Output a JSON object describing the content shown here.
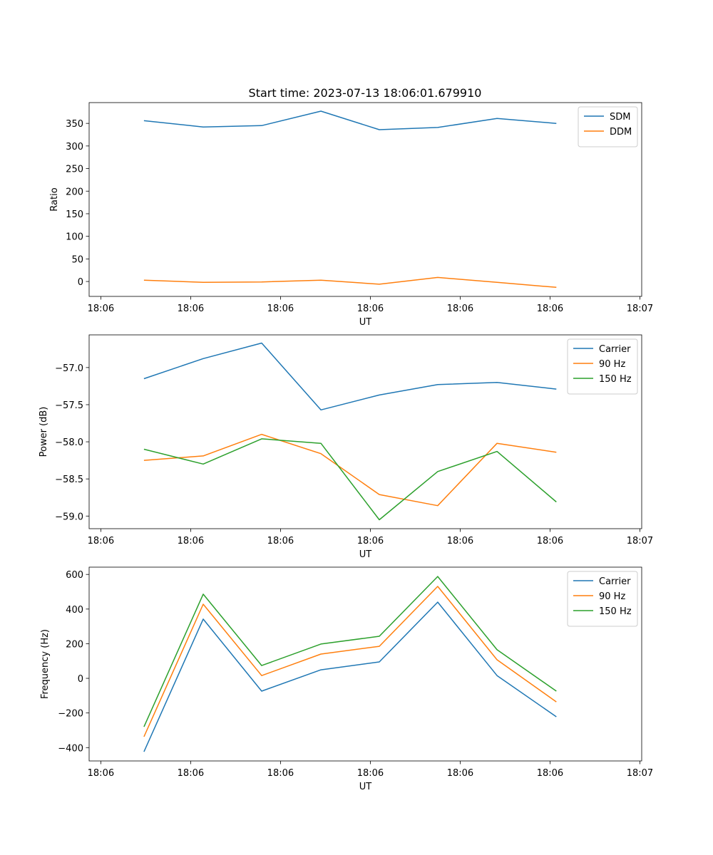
{
  "figure_title": "Start time: 2023-07-13 18:06:01.679910",
  "colors": {
    "blue": "#1f77b4",
    "orange": "#ff7f0e",
    "green": "#2ca02c"
  },
  "chart_data": [
    {
      "type": "line",
      "title": "Start time: 2023-07-13 18:06:01.679910",
      "xlabel": "UT",
      "ylabel": "Ratio",
      "x_seconds_after_18_06": [
        4.8,
        11.4,
        17.9,
        24.5,
        31.0,
        37.5,
        44.1,
        50.7
      ],
      "xlim": [
        -1.3,
        60.2
      ],
      "xticks": [
        0,
        10,
        20,
        30,
        40,
        50,
        60
      ],
      "xtick_labels": [
        "18:06",
        "18:06",
        "18:06",
        "18:06",
        "18:06",
        "18:06",
        "18:07"
      ],
      "ylim": [
        -33,
        396
      ],
      "yticks": [
        0,
        50,
        100,
        150,
        200,
        250,
        300,
        350
      ],
      "ytick_labels": [
        "0",
        "50",
        "100",
        "150",
        "200",
        "250",
        "300",
        "350"
      ],
      "legend": "top-right",
      "series": [
        {
          "name": "SDM",
          "color": "#1f77b4",
          "values": [
            356,
            342,
            345,
            377,
            336,
            341,
            361,
            350
          ]
        },
        {
          "name": "DDM",
          "color": "#ff7f0e",
          "values": [
            3,
            -2,
            -1,
            3,
            -6,
            9,
            -2,
            -13
          ]
        }
      ]
    },
    {
      "type": "line",
      "xlabel": "UT",
      "ylabel": "Power (dB)",
      "x_seconds_after_18_06": [
        4.8,
        11.4,
        17.9,
        24.5,
        31.0,
        37.5,
        44.1,
        50.7
      ],
      "xlim": [
        -1.3,
        60.2
      ],
      "xticks": [
        0,
        10,
        20,
        30,
        40,
        50,
        60
      ],
      "xtick_labels": [
        "18:06",
        "18:06",
        "18:06",
        "18:06",
        "18:06",
        "18:06",
        "18:07"
      ],
      "ylim": [
        -59.17,
        -56.56
      ],
      "yticks": [
        -59.0,
        -58.5,
        -58.0,
        -57.5,
        -57.0
      ],
      "ytick_labels": [
        "−59.0",
        "−58.5",
        "−58.0",
        "−57.5",
        "−57.0"
      ],
      "legend": "top-right",
      "series": [
        {
          "name": "Carrier",
          "color": "#1f77b4",
          "values": [
            -57.15,
            -56.88,
            -56.67,
            -57.57,
            -57.37,
            -57.23,
            -57.2,
            -57.29
          ]
        },
        {
          "name": "90 Hz",
          "color": "#ff7f0e",
          "values": [
            -58.25,
            -58.19,
            -57.9,
            -58.16,
            -58.71,
            -58.86,
            -58.02,
            -58.14
          ]
        },
        {
          "name": "150 Hz",
          "color": "#2ca02c",
          "values": [
            -58.1,
            -58.3,
            -57.96,
            -58.02,
            -59.05,
            -58.4,
            -58.13,
            -58.81
          ]
        }
      ]
    },
    {
      "type": "line",
      "xlabel": "UT",
      "ylabel": "Frequency (Hz)",
      "x_seconds_after_18_06": [
        4.8,
        11.4,
        17.9,
        24.5,
        31.0,
        37.5,
        44.1,
        50.7
      ],
      "xlim": [
        -1.3,
        60.2
      ],
      "xticks": [
        0,
        10,
        20,
        30,
        40,
        50,
        60
      ],
      "xtick_labels": [
        "18:06",
        "18:06",
        "18:06",
        "18:06",
        "18:06",
        "18:06",
        "18:07"
      ],
      "ylim": [
        -477,
        642
      ],
      "yticks": [
        -400,
        -200,
        0,
        200,
        400,
        600
      ],
      "ytick_labels": [
        "−400",
        "−200",
        "0",
        "200",
        "400",
        "600"
      ],
      "legend": "top-right",
      "series": [
        {
          "name": "Carrier",
          "color": "#1f77b4",
          "values": [
            -424,
            342,
            -74,
            49,
            95,
            440,
            16,
            -222
          ]
        },
        {
          "name": "90 Hz",
          "color": "#ff7f0e",
          "values": [
            -337,
            428,
            16,
            140,
            185,
            531,
            107,
            -136
          ]
        },
        {
          "name": "150 Hz",
          "color": "#2ca02c",
          "values": [
            -280,
            486,
            74,
            198,
            243,
            588,
            165,
            -74
          ]
        }
      ]
    }
  ]
}
